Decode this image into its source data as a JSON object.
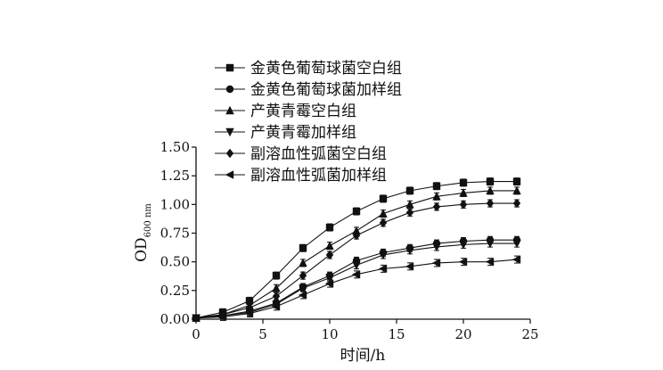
{
  "chart_data": {
    "type": "line",
    "xlabel": "时间/h",
    "ylabel": "OD",
    "ylabel_subscript": "600 nm",
    "xlim": [
      0,
      25
    ],
    "ylim": [
      0.0,
      1.5
    ],
    "x_ticks": [
      "0",
      "5",
      "10",
      "15",
      "20",
      "25"
    ],
    "y_ticks": [
      "0.00",
      "0.25",
      "0.50",
      "0.75",
      "1.00",
      "1.25",
      "1.50"
    ],
    "grid": false,
    "legend_position": "top",
    "x": [
      0,
      2,
      4,
      6,
      8,
      10,
      12,
      14,
      16,
      18,
      20,
      22,
      24
    ],
    "series": [
      {
        "name": "金黄色葡萄球菌空白组",
        "marker": "square",
        "values": [
          0.01,
          0.06,
          0.16,
          0.38,
          0.62,
          0.8,
          0.94,
          1.05,
          1.12,
          1.16,
          1.19,
          1.2,
          1.2
        ]
      },
      {
        "name": "金黄色葡萄球菌加样组",
        "marker": "circle",
        "values": [
          0.01,
          0.03,
          0.07,
          0.14,
          0.28,
          0.38,
          0.51,
          0.58,
          0.62,
          0.66,
          0.68,
          0.69,
          0.69
        ]
      },
      {
        "name": "产黄青霉空白组",
        "marker": "triangle-up",
        "values": [
          0.01,
          0.04,
          0.12,
          0.27,
          0.49,
          0.64,
          0.77,
          0.92,
          1.0,
          1.07,
          1.1,
          1.12,
          1.12
        ]
      },
      {
        "name": "产黄青霉加样组",
        "marker": "triangle-down",
        "values": [
          0.01,
          0.03,
          0.06,
          0.13,
          0.27,
          0.36,
          0.47,
          0.56,
          0.6,
          0.63,
          0.65,
          0.66,
          0.66
        ]
      },
      {
        "name": "副溶血性弧菌空白组",
        "marker": "diamond",
        "values": [
          0.01,
          0.04,
          0.1,
          0.2,
          0.38,
          0.56,
          0.73,
          0.84,
          0.93,
          0.98,
          1.0,
          1.01,
          1.01
        ]
      },
      {
        "name": "副溶血性弧菌加样组",
        "marker": "triangle-left",
        "values": [
          0.01,
          0.02,
          0.05,
          0.11,
          0.21,
          0.31,
          0.39,
          0.44,
          0.46,
          0.49,
          0.5,
          0.5,
          0.52
        ]
      }
    ]
  }
}
